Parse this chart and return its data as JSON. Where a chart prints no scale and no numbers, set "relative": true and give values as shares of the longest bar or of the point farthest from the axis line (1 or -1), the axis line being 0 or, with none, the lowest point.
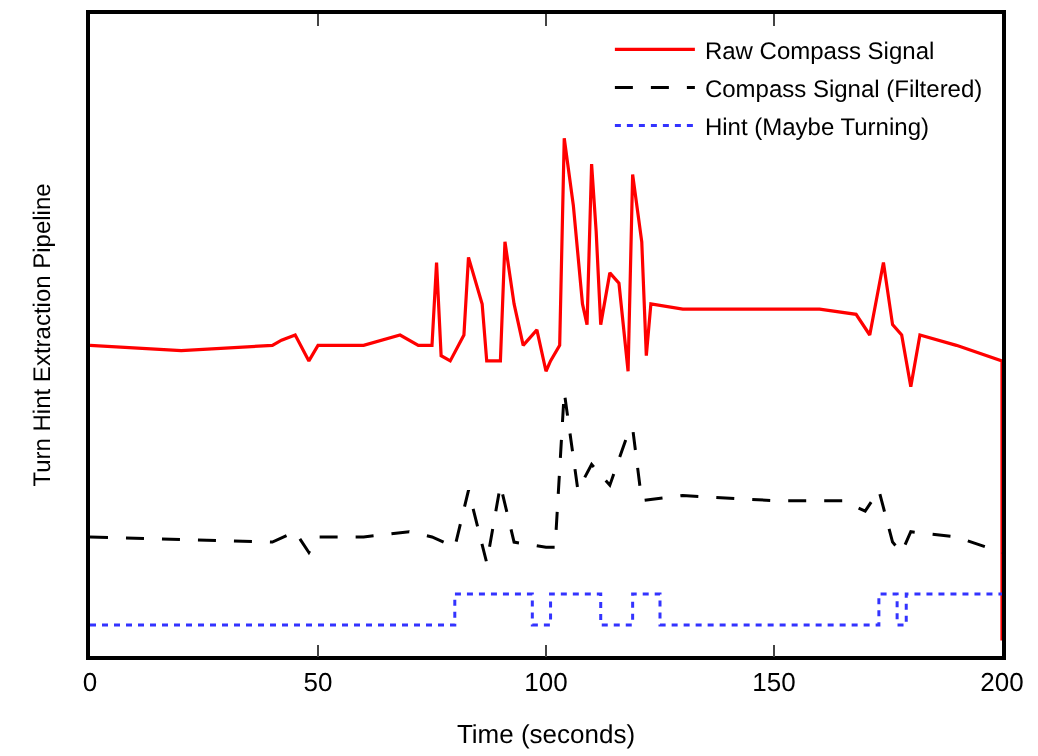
{
  "chart_data": {
    "type": "line",
    "relative": true,
    "xlabel": "Time (seconds)",
    "ylabel": "Turn Hint Extraction Pipeline",
    "xlim": [
      0,
      200
    ],
    "xticks": [
      0,
      50,
      100,
      150,
      200
    ],
    "legend": "top right",
    "marker": "none",
    "series": [
      {
        "name": "Raw Compass Signal",
        "color": "#ff0000",
        "line_style": "solid",
        "x": [
          0,
          20,
          40,
          42,
          45,
          48,
          50,
          60,
          68,
          72,
          75,
          76,
          77,
          79,
          82,
          83,
          86,
          87,
          90,
          91,
          93,
          95,
          98,
          100,
          101,
          103,
          104,
          106,
          108,
          109,
          110,
          111,
          112,
          114,
          116,
          118,
          119,
          121,
          122,
          123,
          130,
          150,
          160,
          168,
          171,
          174,
          176,
          178,
          180,
          182,
          190,
          200,
          200
        ],
        "values": [
          0.6,
          0.59,
          0.6,
          0.61,
          0.62,
          0.57,
          0.6,
          0.6,
          0.62,
          0.6,
          0.6,
          0.76,
          0.58,
          0.57,
          0.62,
          0.77,
          0.68,
          0.57,
          0.57,
          0.8,
          0.68,
          0.6,
          0.63,
          0.55,
          0.57,
          0.6,
          1.0,
          0.87,
          0.68,
          0.64,
          0.95,
          0.82,
          0.64,
          0.74,
          0.72,
          0.55,
          0.93,
          0.8,
          0.58,
          0.68,
          0.67,
          0.67,
          0.67,
          0.66,
          0.62,
          0.76,
          0.64,
          0.62,
          0.52,
          0.62,
          0.6,
          0.57,
          0.03
        ]
      },
      {
        "name": "Compass Signal (Filtered)",
        "color": "#000000",
        "line_style": "dashed",
        "x": [
          0,
          40,
          45,
          48,
          50,
          60,
          70,
          75,
          80,
          83,
          87,
          90,
          93,
          100,
          102,
          104,
          107,
          110,
          114,
          118,
          119,
          121,
          130,
          150,
          165,
          170,
          173,
          176,
          178,
          180,
          190,
          200
        ],
        "values": [
          0.23,
          0.22,
          0.24,
          0.2,
          0.23,
          0.23,
          0.24,
          0.23,
          0.21,
          0.32,
          0.18,
          0.33,
          0.22,
          0.21,
          0.21,
          0.51,
          0.32,
          0.37,
          0.33,
          0.43,
          0.44,
          0.3,
          0.31,
          0.3,
          0.3,
          0.28,
          0.32,
          0.22,
          0.2,
          0.24,
          0.23,
          0.2
        ]
      },
      {
        "name": "Hint (Maybe Turning)",
        "color": "#3333ff",
        "type": "step",
        "line_style": "dotted",
        "x": [
          0,
          80,
          97,
          101,
          112,
          119,
          125,
          173,
          177,
          179,
          200
        ],
        "values": [
          0.06,
          0.12,
          0.06,
          0.12,
          0.06,
          0.12,
          0.06,
          0.12,
          0.06,
          0.12,
          0.12
        ]
      }
    ]
  }
}
